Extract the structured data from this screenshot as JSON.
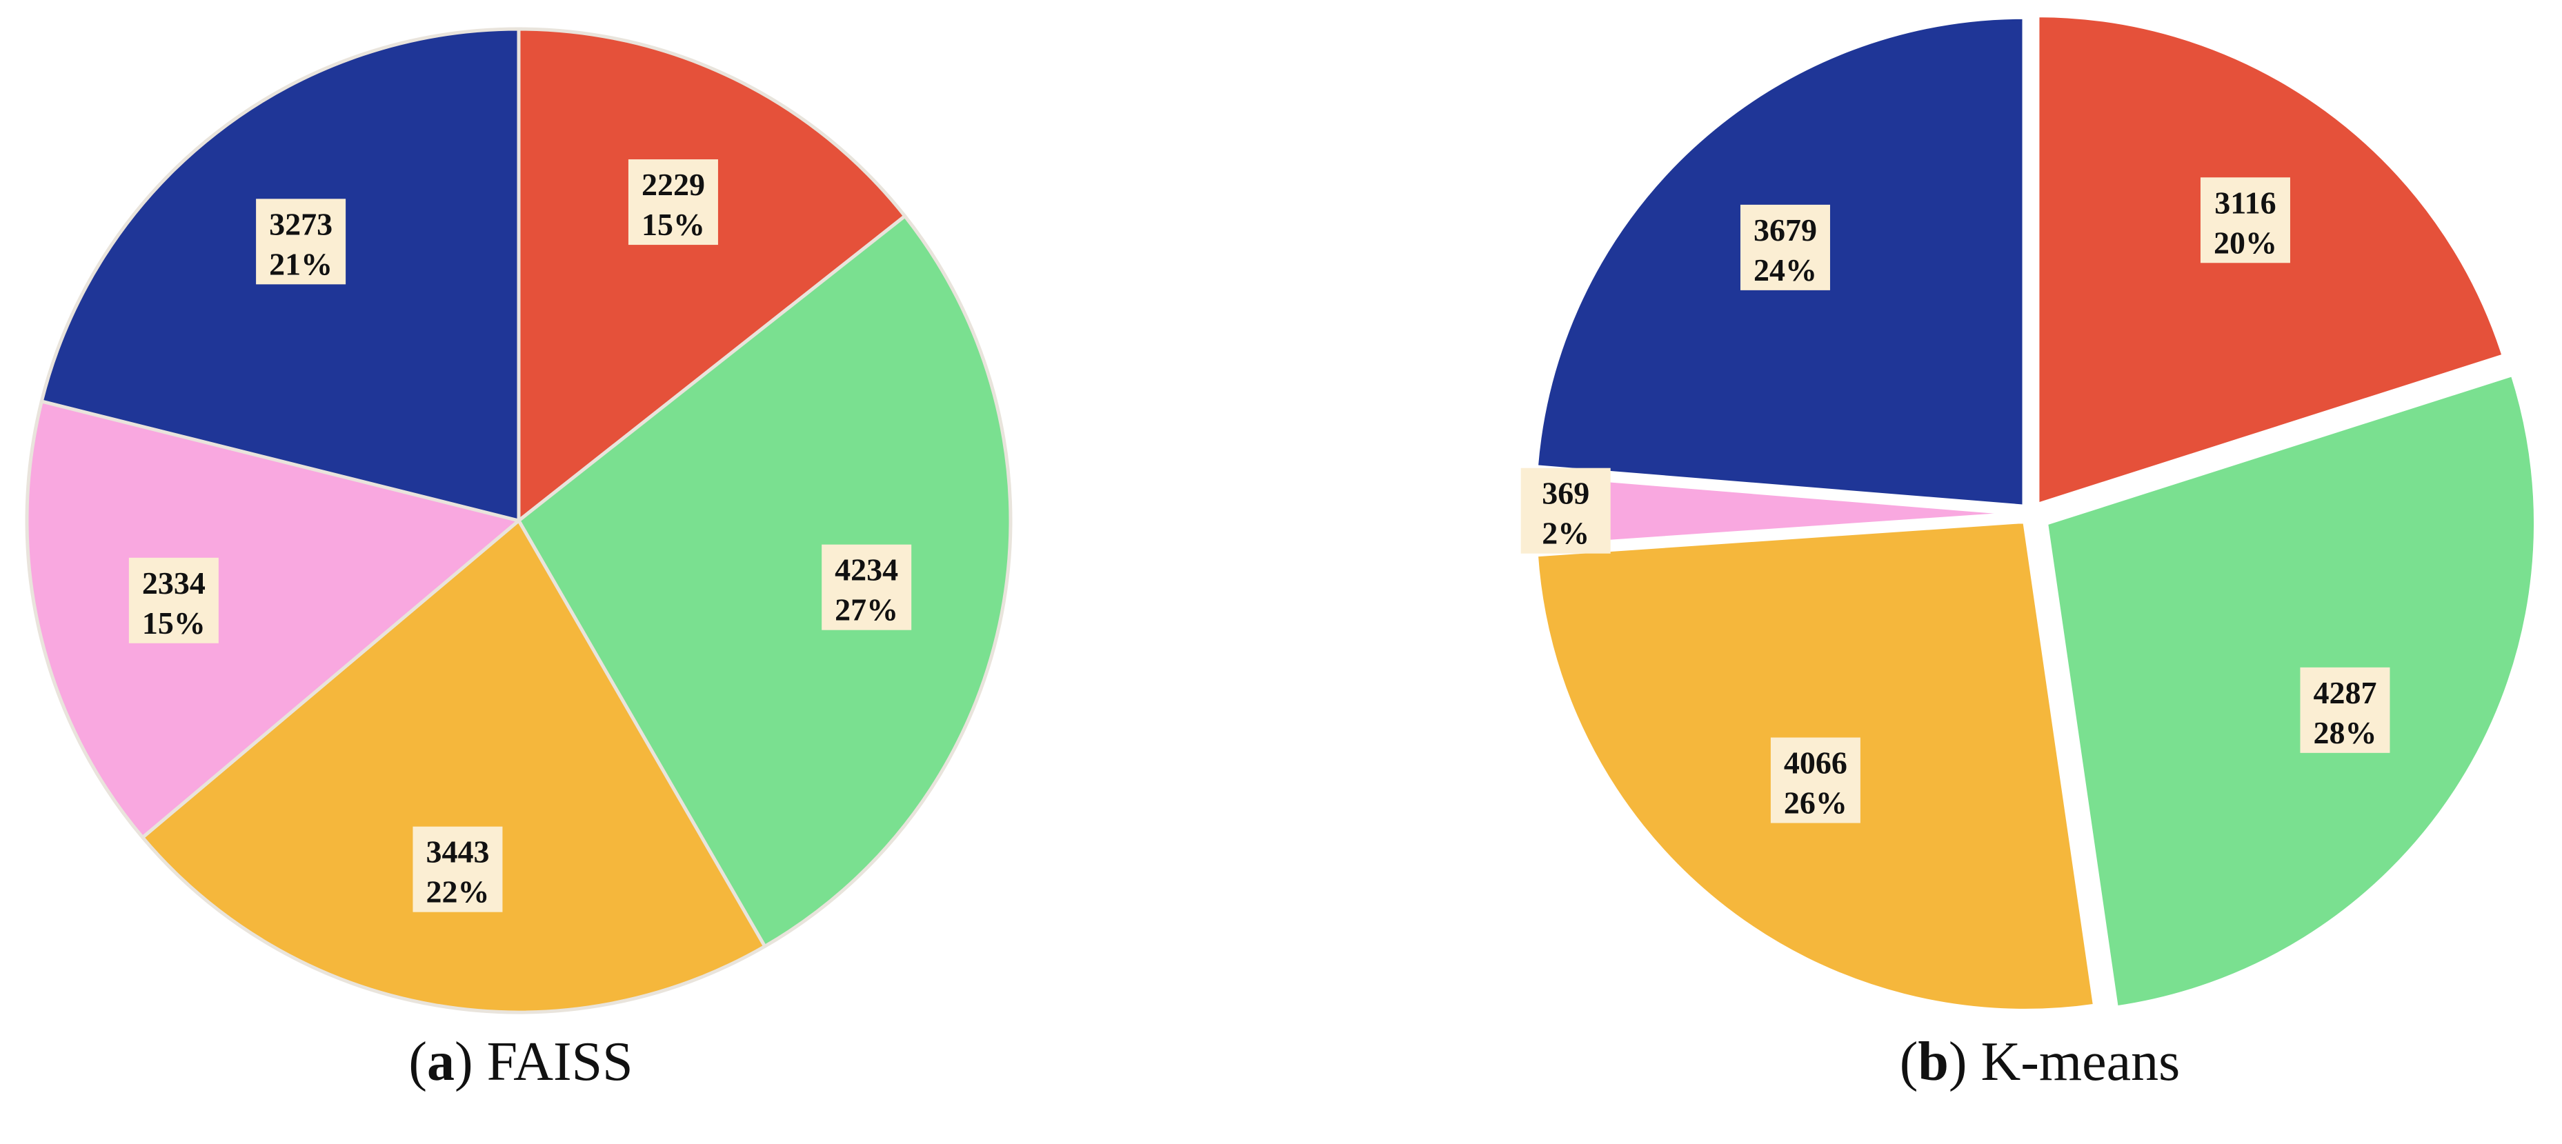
{
  "chart_data": [
    {
      "type": "pie",
      "caption": {
        "open": "(",
        "letter": "a",
        "close": ")",
        "text": "FAISS"
      },
      "slices": [
        {
          "value": 2229,
          "percent": "15%",
          "color": "#e5513a"
        },
        {
          "value": 4234,
          "percent": "27%",
          "color": "#7ae090"
        },
        {
          "value": 3443,
          "percent": "22%",
          "color": "#f5b73c"
        },
        {
          "value": 2334,
          "percent": "15%",
          "color": "#f9a8e0"
        },
        {
          "value": 3273,
          "percent": "21%",
          "color": "#1f3697"
        }
      ],
      "start_angle_deg": 0,
      "direction": "clockwise",
      "exploded": false
    },
    {
      "type": "pie",
      "caption": {
        "open": "(",
        "letter": "b",
        "close": ")",
        "text": "K-means"
      },
      "slices": [
        {
          "value": 3116,
          "percent": "20%",
          "color": "#e5513a"
        },
        {
          "value": 4287,
          "percent": "28%",
          "color": "#7ae090"
        },
        {
          "value": 4066,
          "percent": "26%",
          "color": "#f5b73c"
        },
        {
          "value": 369,
          "percent": "2%",
          "color": "#f9a8e0"
        },
        {
          "value": 3679,
          "percent": "24%",
          "color": "#1f3697"
        }
      ],
      "start_angle_deg": 0,
      "direction": "clockwise",
      "exploded": true
    }
  ]
}
